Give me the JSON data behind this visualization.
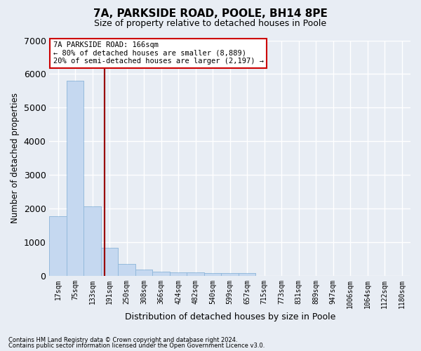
{
  "title1": "7A, PARKSIDE ROAD, POOLE, BH14 8PE",
  "title2": "Size of property relative to detached houses in Poole",
  "xlabel": "Distribution of detached houses by size in Poole",
  "ylabel": "Number of detached properties",
  "bar_labels": [
    "17sqm",
    "75sqm",
    "133sqm",
    "191sqm",
    "250sqm",
    "308sqm",
    "366sqm",
    "424sqm",
    "482sqm",
    "540sqm",
    "599sqm",
    "657sqm",
    "715sqm",
    "773sqm",
    "831sqm",
    "889sqm",
    "947sqm",
    "1006sqm",
    "1064sqm",
    "1122sqm",
    "1180sqm"
  ],
  "bar_values": [
    1780,
    5800,
    2060,
    830,
    350,
    190,
    130,
    110,
    100,
    80,
    80,
    80,
    5,
    5,
    5,
    5,
    5,
    5,
    5,
    5,
    5
  ],
  "bar_color": "#c5d8f0",
  "bar_edge_color": "#8ab4d8",
  "background_color": "#e8edf4",
  "grid_color": "#ffffff",
  "vline_x": 2.72,
  "vline_color": "#990000",
  "annotation_line1": "7A PARKSIDE ROAD: 166sqm",
  "annotation_line2": "← 80% of detached houses are smaller (8,889)",
  "annotation_line3": "20% of semi-detached houses are larger (2,197) →",
  "annotation_box_facecolor": "#ffffff",
  "annotation_box_edgecolor": "#cc0000",
  "ylim": [
    0,
    7000
  ],
  "yticks": [
    0,
    1000,
    2000,
    3000,
    4000,
    5000,
    6000,
    7000
  ],
  "footer1": "Contains HM Land Registry data © Crown copyright and database right 2024.",
  "footer2": "Contains public sector information licensed under the Open Government Licence v3.0."
}
